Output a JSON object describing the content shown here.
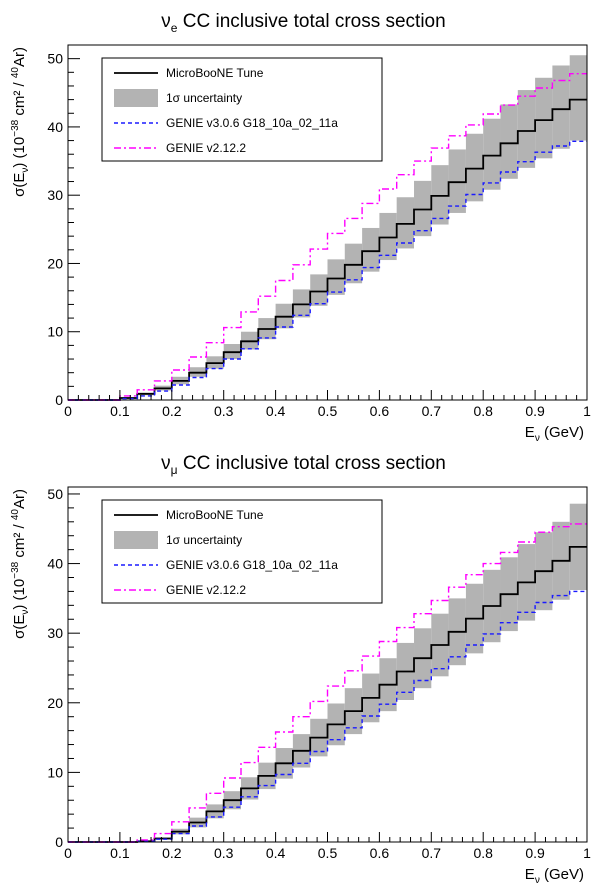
{
  "chart_data": [
    {
      "type": "line",
      "title": "νe CC inclusive total cross section",
      "title_parts": {
        "nu": "ν",
        "flavor": "e",
        "rest": " CC inclusive total cross section"
      },
      "xlabel": "Eν (GeV)",
      "xlabel_parts": {
        "main": "E",
        "sub": "ν",
        "rest": " (GeV)"
      },
      "ylabel": "σ(Eν) (10^-38 cm² / ^40Ar)",
      "ylabel_parts": {
        "p1": "σ(E",
        "sub": "ν",
        "p2": ") (10",
        "sup1": "−38",
        "p3": " cm² / ",
        "sup2": "40",
        "p4": "Ar)"
      },
      "xlim": [
        0,
        1
      ],
      "ylim": [
        0,
        52
      ],
      "xticks": [
        0,
        0.1,
        0.2,
        0.3,
        0.4,
        0.5,
        0.6,
        0.7,
        0.8,
        0.9,
        1
      ],
      "xtick_labels": [
        "0",
        "0.1",
        "0.2",
        "0.3",
        "0.4",
        "0.5",
        "0.6",
        "0.7",
        "0.8",
        "0.9",
        "1"
      ],
      "yticks": [
        0,
        10,
        20,
        30,
        40,
        50
      ],
      "ytick_labels": [
        "0",
        "10",
        "20",
        "30",
        "40",
        "50"
      ],
      "grid": false,
      "legend_position": "top-left",
      "legend": [
        {
          "key": "tune",
          "label": "MicroBooNE Tune"
        },
        {
          "key": "band",
          "label": "1σ uncertainty"
        },
        {
          "key": "genie3",
          "label": "GENIE v3.0.6 G18_10a_02_11a"
        },
        {
          "key": "genie2",
          "label": "GENIE v2.12.2"
        }
      ],
      "bin_edges": [
        0.0,
        0.0333,
        0.0667,
        0.1,
        0.1333,
        0.1667,
        0.2,
        0.2333,
        0.2667,
        0.3,
        0.3333,
        0.3667,
        0.4,
        0.4333,
        0.4667,
        0.5,
        0.5333,
        0.5667,
        0.6,
        0.6333,
        0.6667,
        0.7,
        0.7333,
        0.7667,
        0.8,
        0.8333,
        0.8667,
        0.9,
        0.9333,
        0.9667,
        1.0
      ],
      "series": [
        {
          "name": "MicroBooNE Tune",
          "color": "#000000",
          "style": "solid",
          "values": [
            0,
            0,
            0,
            0.3,
            0.9,
            1.7,
            2.8,
            4.0,
            5.4,
            7.0,
            8.6,
            10.4,
            12.2,
            14.0,
            15.9,
            17.8,
            19.8,
            21.8,
            23.8,
            25.8,
            27.9,
            29.9,
            31.9,
            33.9,
            35.8,
            37.6,
            39.4,
            41.0,
            42.6,
            44.0
          ]
        },
        {
          "name": "1σ uncertainty",
          "color": "#b3b3b3",
          "style": "band",
          "lower": [
            0,
            0,
            0,
            0.2,
            0.7,
            1.4,
            2.3,
            3.4,
            4.6,
            6.0,
            7.4,
            8.9,
            10.5,
            12.1,
            13.8,
            15.4,
            17.1,
            18.8,
            20.5,
            22.2,
            24.0,
            25.7,
            27.4,
            29.1,
            30.8,
            32.4,
            34.0,
            35.4,
            36.8,
            38.0
          ],
          "upper": [
            0,
            0,
            0,
            0.4,
            1.1,
            2.1,
            3.4,
            4.8,
            6.4,
            8.2,
            10.0,
            12.0,
            14.1,
            16.2,
            18.4,
            20.6,
            22.9,
            25.2,
            27.4,
            29.7,
            32.1,
            34.4,
            36.7,
            39.0,
            41.2,
            43.3,
            45.4,
            47.2,
            49.0,
            50.5
          ]
        },
        {
          "name": "GENIE v3.0.6 G18_10a_02_11a",
          "color": "#1a1aff",
          "style": "dashed",
          "values": [
            0,
            0,
            0,
            0.2,
            0.6,
            1.3,
            2.2,
            3.3,
            4.6,
            6.0,
            7.5,
            9.1,
            10.7,
            12.4,
            14.1,
            15.8,
            17.6,
            19.4,
            21.2,
            23.0,
            24.8,
            26.6,
            28.4,
            30.1,
            31.8,
            33.4,
            34.9,
            36.3,
            37.2,
            37.9
          ]
        },
        {
          "name": "GENIE v2.12.2",
          "color": "#ff00ff",
          "style": "dashdot",
          "values": [
            0,
            0,
            0,
            0.6,
            1.5,
            2.8,
            4.4,
            6.3,
            8.4,
            10.6,
            12.9,
            15.2,
            17.5,
            19.8,
            22.1,
            24.4,
            26.6,
            28.8,
            30.9,
            33.0,
            35.0,
            36.9,
            38.7,
            40.3,
            41.9,
            43.2,
            44.5,
            45.7,
            46.8,
            47.8
          ]
        }
      ]
    },
    {
      "type": "line",
      "title": "νμ CC inclusive total cross section",
      "title_parts": {
        "nu": "ν",
        "flavor": "μ",
        "rest": " CC inclusive total cross section"
      },
      "xlabel": "Eν (GeV)",
      "xlabel_parts": {
        "main": "E",
        "sub": "ν",
        "rest": " (GeV)"
      },
      "ylabel": "σ(Eν) (10^-38 cm² / ^40Ar)",
      "ylabel_parts": {
        "p1": "σ(E",
        "sub": "ν",
        "p2": ") (10",
        "sup1": "−38",
        "p3": " cm² / ",
        "sup2": "40",
        "p4": "Ar)"
      },
      "xlim": [
        0,
        1
      ],
      "ylim": [
        0,
        51
      ],
      "xticks": [
        0,
        0.1,
        0.2,
        0.3,
        0.4,
        0.5,
        0.6,
        0.7,
        0.8,
        0.9,
        1
      ],
      "xtick_labels": [
        "0",
        "0.1",
        "0.2",
        "0.3",
        "0.4",
        "0.5",
        "0.6",
        "0.7",
        "0.8",
        "0.9",
        "1"
      ],
      "yticks": [
        0,
        10,
        20,
        30,
        40,
        50
      ],
      "ytick_labels": [
        "0",
        "10",
        "20",
        "30",
        "40",
        "50"
      ],
      "grid": false,
      "legend_position": "top-left",
      "legend": [
        {
          "key": "tune",
          "label": "MicroBooNE Tune"
        },
        {
          "key": "band",
          "label": "1σ uncertainty"
        },
        {
          "key": "genie3",
          "label": "GENIE v3.0.6 G18_10a_02_11a"
        },
        {
          "key": "genie2",
          "label": "GENIE v2.12.2"
        }
      ],
      "bin_edges": [
        0.0,
        0.0333,
        0.0667,
        0.1,
        0.1333,
        0.1667,
        0.2,
        0.2333,
        0.2667,
        0.3,
        0.3333,
        0.3667,
        0.4,
        0.4333,
        0.4667,
        0.5,
        0.5333,
        0.5667,
        0.6,
        0.6333,
        0.6667,
        0.7,
        0.7333,
        0.7667,
        0.8,
        0.8333,
        0.8667,
        0.9,
        0.9333,
        0.9667,
        1.0
      ],
      "series": [
        {
          "name": "MicroBooNE Tune",
          "color": "#000000",
          "style": "solid",
          "values": [
            0,
            0,
            0,
            0,
            0.1,
            0.5,
            1.5,
            2.8,
            4.4,
            6.0,
            7.7,
            9.5,
            11.3,
            13.1,
            15.0,
            16.9,
            18.8,
            20.7,
            22.6,
            24.5,
            26.4,
            28.3,
            30.2,
            32.1,
            33.9,
            35.6,
            37.3,
            38.9,
            40.4,
            42.4
          ]
        },
        {
          "name": "1σ uncertainty",
          "color": "#b3b3b3",
          "style": "band",
          "lower": [
            0,
            0,
            0,
            0,
            0.05,
            0.35,
            1.1,
            2.1,
            3.4,
            4.7,
            6.1,
            7.6,
            9.1,
            10.7,
            12.3,
            13.9,
            15.5,
            17.2,
            18.8,
            20.4,
            22.1,
            23.8,
            25.4,
            27.1,
            28.7,
            30.3,
            31.8,
            33.3,
            34.8,
            36.2
          ]
        },
        {
          "name": "GENIE v3.0.6 G18_10a_02_11a",
          "color": "#1a1aff",
          "style": "dashed",
          "values": [
            0,
            0,
            0,
            0,
            0.1,
            0.4,
            1.2,
            2.3,
            3.6,
            5.0,
            6.5,
            8.1,
            9.7,
            11.3,
            13.0,
            14.7,
            16.4,
            18.1,
            19.8,
            21.5,
            23.2,
            24.9,
            26.6,
            28.3,
            29.9,
            31.5,
            33.0,
            34.4,
            35.4,
            36.0
          ]
        },
        {
          "name": "GENIE v2.12.2",
          "color": "#ff00ff",
          "style": "dashdot",
          "values": [
            0,
            0,
            0,
            0,
            0.3,
            1.2,
            2.9,
            4.9,
            7.0,
            9.2,
            11.4,
            13.6,
            15.8,
            18.0,
            20.2,
            22.4,
            24.6,
            26.7,
            28.8,
            30.8,
            32.8,
            34.7,
            36.6,
            38.4,
            40.0,
            41.6,
            43.1,
            44.5,
            45.3,
            45.7
          ]
        }
      ]
    }
  ]
}
